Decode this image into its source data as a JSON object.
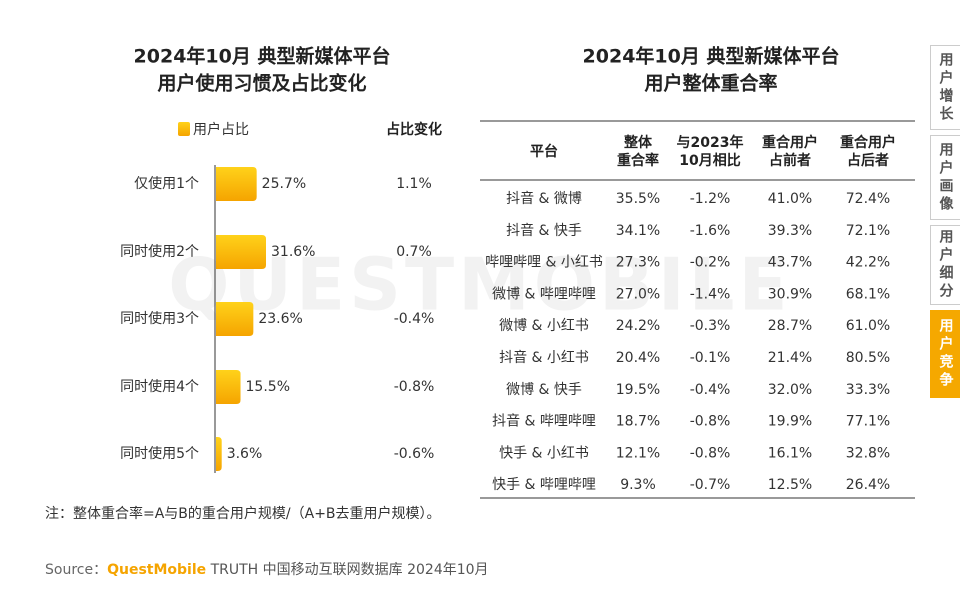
{
  "chart_data": {
    "type": "bar",
    "orientation": "horizontal",
    "title": [
      "2024年10月 典型新媒体平台",
      "用户使用习惯及占比变化"
    ],
    "categories": [
      "仅使用1个",
      "同时使用2个",
      "同时使用3个",
      "同时使用4个",
      "同时使用5个"
    ],
    "series": [
      {
        "name": "用户占比",
        "color": "#f5b000",
        "values": [
          25.7,
          31.6,
          23.6,
          15.5,
          3.6
        ],
        "value_labels": [
          "25.7%",
          "31.6%",
          "23.6%",
          "15.5%",
          "3.6%"
        ]
      }
    ],
    "change": {
      "title": "占比变化",
      "values": [
        1.1,
        0.7,
        -0.4,
        -0.8,
        -0.6
      ],
      "value_labels": [
        "1.1%",
        "0.7%",
        "-0.4%",
        "-0.8%",
        "-0.6%"
      ],
      "positive_color": "#c00000",
      "negative_color": "#1a9a3c"
    }
  },
  "table": {
    "title": [
      "2024年10月 典型新媒体平台",
      "用户整体重合率"
    ],
    "headers": [
      [
        "平台"
      ],
      [
        "整体",
        "重合率"
      ],
      [
        "与2023年",
        "10月相比"
      ],
      [
        "重合用户",
        "占前者"
      ],
      [
        "重合用户",
        "占后者"
      ]
    ],
    "rows": [
      [
        "抖音 & 微博",
        "35.5%",
        "-1.2%",
        "41.0%",
        "72.4%"
      ],
      [
        "抖音 & 快手",
        "34.1%",
        "-1.6%",
        "39.3%",
        "72.1%"
      ],
      [
        "哔哩哔哩 & 小红书",
        "27.3%",
        "-0.2%",
        "43.7%",
        "42.2%"
      ],
      [
        "微博 & 哔哩哔哩",
        "27.0%",
        "-1.4%",
        "30.9%",
        "68.1%"
      ],
      [
        "微博 & 小红书",
        "24.2%",
        "-0.3%",
        "28.7%",
        "61.0%"
      ],
      [
        "抖音 & 小红书",
        "20.4%",
        "-0.1%",
        "21.4%",
        "80.5%"
      ],
      [
        "微博 & 快手",
        "19.5%",
        "-0.4%",
        "32.0%",
        "33.3%"
      ],
      [
        "抖音 & 哔哩哔哩",
        "18.7%",
        "-0.8%",
        "19.9%",
        "77.1%"
      ],
      [
        "快手 & 小红书",
        "12.1%",
        "-0.8%",
        "16.1%",
        "32.8%"
      ],
      [
        "快手 & 哔哩哔哩",
        "9.3%",
        "-0.7%",
        "12.5%",
        "26.4%"
      ]
    ],
    "change_color": "#1a9a3c"
  },
  "note": "注：整体重合率=A与B的重合用户规模/（A+B去重用户规模）。",
  "source": [
    "Source：",
    "QuestMobile",
    " TRUTH 中国移动互联网数据库 2024年10月"
  ],
  "watermark": "QUESTMOBILE",
  "sidebar": {
    "tabs": [
      "用户增长",
      "用户画像",
      "用户细分",
      "用户竞争"
    ],
    "active": 3
  }
}
